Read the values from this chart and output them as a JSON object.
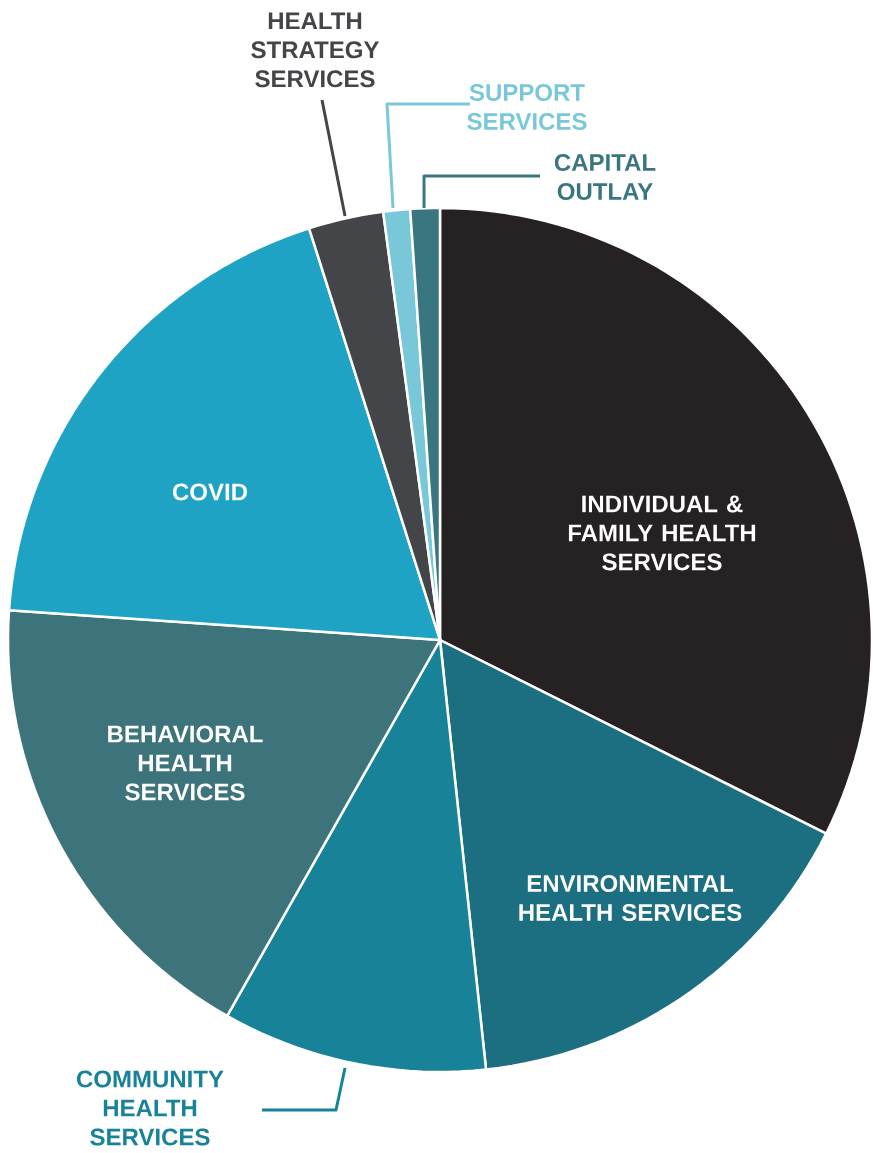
{
  "chart_data": {
    "type": "pie",
    "categories": [
      "INDIVIDUAL & FAMILY HEALTH SERVICES",
      "ENVIRONMENTAL HEALTH SERVICES",
      "COMMUNITY HEALTH SERVICES",
      "BEHAVIORAL HEALTH SERVICES",
      "COVID",
      "HEALTH STRATEGY SERVICES",
      "SUPPORT SERVICES",
      "CAPITAL OUTLAY"
    ],
    "values": [
      32.4,
      15.9,
      9.9,
      17.9,
      19.0,
      2.8,
      1.0,
      1.1
    ],
    "colors": [
      "#262223",
      "#1b6f80",
      "#188299",
      "#3d737b",
      "#1fa3c4",
      "#444548",
      "#78c8d9",
      "#3a7680"
    ]
  }
}
